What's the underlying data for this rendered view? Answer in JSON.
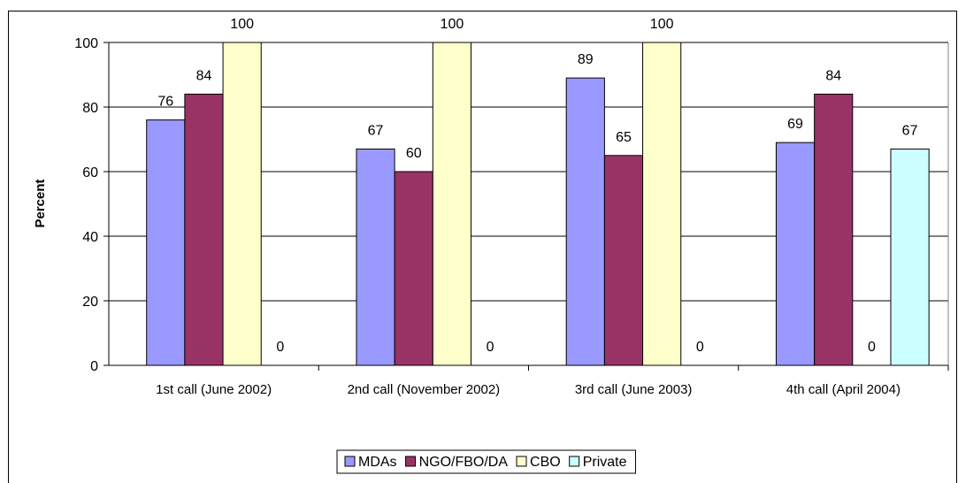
{
  "chart_data": {
    "type": "bar",
    "y_label": "Percent",
    "categories": [
      "1st call (June 2002)",
      "2nd call (November 2002)",
      "3rd call (June 2003)",
      "4th call (April 2004)"
    ],
    "series": [
      {
        "name": "MDAs",
        "color": "#9999ff",
        "values": [
          76,
          67,
          89,
          69
        ]
      },
      {
        "name": "NGO/FBO/DA",
        "color": "#993366",
        "values": [
          84,
          60,
          65,
          84
        ]
      },
      {
        "name": "CBO",
        "color": "#ffffcc",
        "values": [
          100,
          100,
          100,
          0
        ]
      },
      {
        "name": "Private",
        "color": "#ccffff",
        "values": [
          0,
          0,
          0,
          67
        ]
      }
    ],
    "ylim": [
      0,
      100
    ],
    "yticks": [
      0,
      20,
      40,
      60,
      80,
      100
    ],
    "grid": true,
    "legend": "bottom"
  }
}
